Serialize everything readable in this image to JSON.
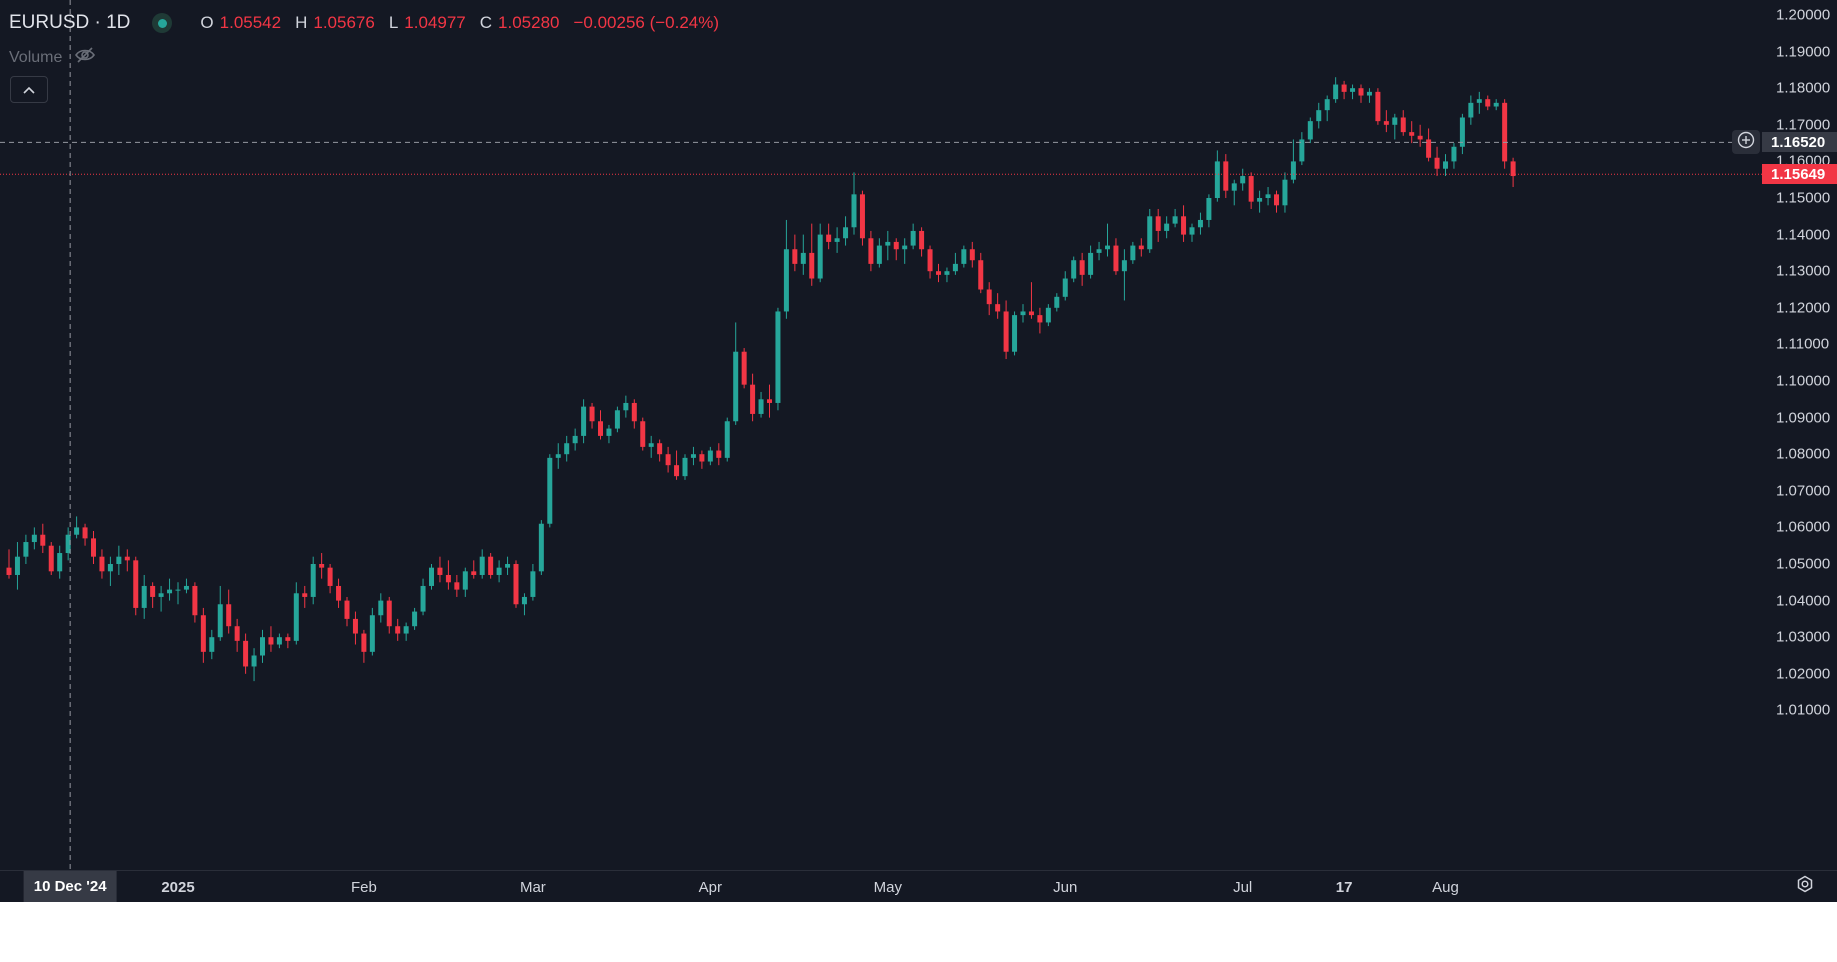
{
  "legend": {
    "symbol": "EURUSD · 1D",
    "open_key": "O",
    "open": "1.05542",
    "high_key": "H",
    "high": "1.05676",
    "low_key": "L",
    "low": "1.04977",
    "close_key": "C",
    "close": "1.05280",
    "change": "−0.00256 (−0.24%)"
  },
  "volume": {
    "label": "Volume",
    "icon": "eye-off-icon"
  },
  "collapse_icon": "chevron-up-icon",
  "settings_icon": "gear-icon",
  "add_alert_icon": "plus-circle-icon",
  "crosshair": {
    "price_label": "1.16520",
    "time_label": "10 Dec '24"
  },
  "last_price": {
    "label": "1.15649"
  },
  "colors": {
    "up": "#26a69a",
    "down": "#f23645",
    "background": "#141823",
    "text": "#d1d4dc"
  },
  "chart_data": {
    "type": "candlestick",
    "ylim": [
      1.0,
      1.2
    ],
    "grid": false,
    "y_ticks": [
      "1.20000",
      "1.19000",
      "1.18000",
      "1.17000",
      "1.16000",
      "1.15000",
      "1.14000",
      "1.13000",
      "1.12000",
      "1.11000",
      "1.10000",
      "1.09000",
      "1.08000",
      "1.07000",
      "1.06000",
      "1.05000",
      "1.04000",
      "1.03000",
      "1.02000",
      "1.01000"
    ],
    "x_ticks": [
      {
        "label": "Dec",
        "bold": false,
        "index": 0
      },
      {
        "label": "2025",
        "bold": true,
        "index": 20
      },
      {
        "label": "Feb",
        "bold": false,
        "index": 42
      },
      {
        "label": "Mar",
        "bold": false,
        "index": 62
      },
      {
        "label": "Apr",
        "bold": false,
        "index": 83
      },
      {
        "label": "May",
        "bold": false,
        "index": 104
      },
      {
        "label": "Jun",
        "bold": false,
        "index": 125
      },
      {
        "label": "Jul",
        "bold": false,
        "index": 146
      },
      {
        "label": "17",
        "bold": true,
        "index": 158
      },
      {
        "label": "Aug",
        "bold": false,
        "index": 170
      }
    ],
    "crosshair_index": 7,
    "crosshair_price": 1.1652,
    "last_price": 1.15649,
    "ohlc": [
      [
        1.049,
        1.054,
        1.046,
        1.047
      ],
      [
        1.047,
        1.056,
        1.043,
        1.052
      ],
      [
        1.052,
        1.058,
        1.05,
        1.056
      ],
      [
        1.056,
        1.06,
        1.054,
        1.058
      ],
      [
        1.058,
        1.061,
        1.053,
        1.055
      ],
      [
        1.055,
        1.056,
        1.047,
        1.048
      ],
      [
        1.048,
        1.055,
        1.046,
        1.053
      ],
      [
        1.053,
        1.06,
        1.051,
        1.058
      ],
      [
        1.058,
        1.063,
        1.057,
        1.06
      ],
      [
        1.06,
        1.061,
        1.055,
        1.057
      ],
      [
        1.057,
        1.059,
        1.05,
        1.052
      ],
      [
        1.052,
        1.054,
        1.046,
        1.048
      ],
      [
        1.048,
        1.052,
        1.044,
        1.05
      ],
      [
        1.05,
        1.055,
        1.047,
        1.052
      ],
      [
        1.052,
        1.054,
        1.048,
        1.051
      ],
      [
        1.051,
        1.052,
        1.036,
        1.038
      ],
      [
        1.038,
        1.047,
        1.035,
        1.044
      ],
      [
        1.044,
        1.045,
        1.038,
        1.041
      ],
      [
        1.041,
        1.044,
        1.037,
        1.042
      ],
      [
        1.042,
        1.046,
        1.04,
        1.043
      ],
      [
        1.043,
        1.045,
        1.039,
        1.043
      ],
      [
        1.043,
        1.046,
        1.042,
        1.044
      ],
      [
        1.044,
        1.045,
        1.034,
        1.036
      ],
      [
        1.036,
        1.038,
        1.023,
        1.026
      ],
      [
        1.026,
        1.032,
        1.024,
        1.03
      ],
      [
        1.03,
        1.044,
        1.029,
        1.039
      ],
      [
        1.039,
        1.043,
        1.031,
        1.033
      ],
      [
        1.033,
        1.035,
        1.026,
        1.029
      ],
      [
        1.029,
        1.031,
        1.02,
        1.022
      ],
      [
        1.022,
        1.027,
        1.018,
        1.025
      ],
      [
        1.025,
        1.032,
        1.023,
        1.03
      ],
      [
        1.03,
        1.033,
        1.026,
        1.028
      ],
      [
        1.028,
        1.031,
        1.027,
        1.03
      ],
      [
        1.03,
        1.031,
        1.027,
        1.029
      ],
      [
        1.029,
        1.045,
        1.028,
        1.042
      ],
      [
        1.042,
        1.044,
        1.038,
        1.041
      ],
      [
        1.041,
        1.052,
        1.039,
        1.05
      ],
      [
        1.05,
        1.053,
        1.046,
        1.049
      ],
      [
        1.049,
        1.05,
        1.042,
        1.044
      ],
      [
        1.044,
        1.046,
        1.038,
        1.04
      ],
      [
        1.04,
        1.041,
        1.033,
        1.035
      ],
      [
        1.035,
        1.037,
        1.028,
        1.031
      ],
      [
        1.031,
        1.032,
        1.023,
        1.026
      ],
      [
        1.026,
        1.038,
        1.025,
        1.036
      ],
      [
        1.036,
        1.042,
        1.034,
        1.04
      ],
      [
        1.04,
        1.041,
        1.031,
        1.033
      ],
      [
        1.033,
        1.035,
        1.029,
        1.031
      ],
      [
        1.031,
        1.034,
        1.029,
        1.033
      ],
      [
        1.033,
        1.038,
        1.032,
        1.037
      ],
      [
        1.037,
        1.046,
        1.036,
        1.044
      ],
      [
        1.044,
        1.05,
        1.043,
        1.049
      ],
      [
        1.049,
        1.052,
        1.045,
        1.047
      ],
      [
        1.047,
        1.051,
        1.043,
        1.045
      ],
      [
        1.045,
        1.047,
        1.041,
        1.043
      ],
      [
        1.043,
        1.049,
        1.041,
        1.048
      ],
      [
        1.048,
        1.051,
        1.046,
        1.047
      ],
      [
        1.047,
        1.054,
        1.046,
        1.052
      ],
      [
        1.052,
        1.053,
        1.046,
        1.047
      ],
      [
        1.047,
        1.051,
        1.045,
        1.049
      ],
      [
        1.049,
        1.052,
        1.047,
        1.05
      ],
      [
        1.05,
        1.051,
        1.038,
        1.039
      ],
      [
        1.039,
        1.042,
        1.036,
        1.041
      ],
      [
        1.041,
        1.05,
        1.04,
        1.048
      ],
      [
        1.048,
        1.062,
        1.047,
        1.061
      ],
      [
        1.061,
        1.08,
        1.06,
        1.079
      ],
      [
        1.079,
        1.083,
        1.076,
        1.08
      ],
      [
        1.08,
        1.085,
        1.078,
        1.083
      ],
      [
        1.083,
        1.087,
        1.081,
        1.085
      ],
      [
        1.085,
        1.095,
        1.083,
        1.093
      ],
      [
        1.093,
        1.094,
        1.087,
        1.089
      ],
      [
        1.089,
        1.092,
        1.084,
        1.085
      ],
      [
        1.085,
        1.088,
        1.083,
        1.087
      ],
      [
        1.087,
        1.093,
        1.086,
        1.092
      ],
      [
        1.092,
        1.096,
        1.09,
        1.094
      ],
      [
        1.094,
        1.095,
        1.087,
        1.089
      ],
      [
        1.089,
        1.09,
        1.081,
        1.082
      ],
      [
        1.082,
        1.085,
        1.079,
        1.083
      ],
      [
        1.083,
        1.084,
        1.078,
        1.08
      ],
      [
        1.08,
        1.082,
        1.075,
        1.077
      ],
      [
        1.077,
        1.081,
        1.073,
        1.074
      ],
      [
        1.074,
        1.08,
        1.073,
        1.079
      ],
      [
        1.079,
        1.082,
        1.077,
        1.08
      ],
      [
        1.08,
        1.081,
        1.076,
        1.078
      ],
      [
        1.078,
        1.082,
        1.077,
        1.081
      ],
      [
        1.081,
        1.083,
        1.077,
        1.079
      ],
      [
        1.079,
        1.09,
        1.078,
        1.089
      ],
      [
        1.089,
        1.116,
        1.088,
        1.108
      ],
      [
        1.108,
        1.109,
        1.098,
        1.099
      ],
      [
        1.099,
        1.102,
        1.089,
        1.091
      ],
      [
        1.091,
        1.097,
        1.09,
        1.095
      ],
      [
        1.095,
        1.099,
        1.09,
        1.094
      ],
      [
        1.094,
        1.12,
        1.092,
        1.119
      ],
      [
        1.119,
        1.144,
        1.117,
        1.136
      ],
      [
        1.136,
        1.14,
        1.13,
        1.132
      ],
      [
        1.132,
        1.14,
        1.129,
        1.135
      ],
      [
        1.135,
        1.143,
        1.126,
        1.128
      ],
      [
        1.128,
        1.143,
        1.127,
        1.14
      ],
      [
        1.14,
        1.143,
        1.136,
        1.138
      ],
      [
        1.138,
        1.142,
        1.135,
        1.139
      ],
      [
        1.139,
        1.145,
        1.137,
        1.142
      ],
      [
        1.142,
        1.157,
        1.14,
        1.151
      ],
      [
        1.151,
        1.152,
        1.137,
        1.139
      ],
      [
        1.139,
        1.141,
        1.13,
        1.132
      ],
      [
        1.132,
        1.139,
        1.131,
        1.137
      ],
      [
        1.137,
        1.141,
        1.133,
        1.138
      ],
      [
        1.138,
        1.139,
        1.133,
        1.136
      ],
      [
        1.136,
        1.139,
        1.132,
        1.137
      ],
      [
        1.137,
        1.143,
        1.136,
        1.141
      ],
      [
        1.141,
        1.142,
        1.134,
        1.136
      ],
      [
        1.136,
        1.137,
        1.128,
        1.13
      ],
      [
        1.13,
        1.132,
        1.127,
        1.129
      ],
      [
        1.129,
        1.131,
        1.127,
        1.13
      ],
      [
        1.13,
        1.135,
        1.129,
        1.132
      ],
      [
        1.132,
        1.137,
        1.131,
        1.136
      ],
      [
        1.136,
        1.138,
        1.131,
        1.133
      ],
      [
        1.133,
        1.135,
        1.124,
        1.125
      ],
      [
        1.125,
        1.127,
        1.118,
        1.121
      ],
      [
        1.121,
        1.124,
        1.117,
        1.119
      ],
      [
        1.119,
        1.122,
        1.106,
        1.108
      ],
      [
        1.108,
        1.119,
        1.107,
        1.118
      ],
      [
        1.118,
        1.121,
        1.116,
        1.119
      ],
      [
        1.119,
        1.127,
        1.117,
        1.118
      ],
      [
        1.118,
        1.12,
        1.113,
        1.116
      ],
      [
        1.116,
        1.121,
        1.115,
        1.12
      ],
      [
        1.12,
        1.124,
        1.119,
        1.123
      ],
      [
        1.123,
        1.13,
        1.122,
        1.128
      ],
      [
        1.128,
        1.134,
        1.127,
        1.133
      ],
      [
        1.133,
        1.135,
        1.126,
        1.129
      ],
      [
        1.129,
        1.137,
        1.128,
        1.135
      ],
      [
        1.135,
        1.138,
        1.133,
        1.136
      ],
      [
        1.136,
        1.143,
        1.134,
        1.137
      ],
      [
        1.137,
        1.139,
        1.129,
        1.13
      ],
      [
        1.13,
        1.136,
        1.122,
        1.133
      ],
      [
        1.133,
        1.138,
        1.132,
        1.137
      ],
      [
        1.137,
        1.139,
        1.134,
        1.136
      ],
      [
        1.136,
        1.147,
        1.135,
        1.145
      ],
      [
        1.145,
        1.147,
        1.138,
        1.141
      ],
      [
        1.141,
        1.145,
        1.139,
        1.143
      ],
      [
        1.143,
        1.147,
        1.142,
        1.145
      ],
      [
        1.145,
        1.148,
        1.138,
        1.14
      ],
      [
        1.14,
        1.143,
        1.138,
        1.142
      ],
      [
        1.142,
        1.146,
        1.14,
        1.144
      ],
      [
        1.144,
        1.151,
        1.142,
        1.15
      ],
      [
        1.15,
        1.163,
        1.149,
        1.16
      ],
      [
        1.16,
        1.162,
        1.15,
        1.152
      ],
      [
        1.152,
        1.155,
        1.148,
        1.154
      ],
      [
        1.154,
        1.158,
        1.152,
        1.156
      ],
      [
        1.156,
        1.157,
        1.147,
        1.149
      ],
      [
        1.149,
        1.152,
        1.146,
        1.15
      ],
      [
        1.15,
        1.153,
        1.148,
        1.151
      ],
      [
        1.151,
        1.152,
        1.146,
        1.148
      ],
      [
        1.148,
        1.157,
        1.146,
        1.155
      ],
      [
        1.155,
        1.166,
        1.154,
        1.16
      ],
      [
        1.16,
        1.168,
        1.159,
        1.166
      ],
      [
        1.166,
        1.172,
        1.165,
        1.171
      ],
      [
        1.171,
        1.176,
        1.169,
        1.174
      ],
      [
        1.174,
        1.178,
        1.171,
        1.177
      ],
      [
        1.177,
        1.183,
        1.176,
        1.181
      ],
      [
        1.181,
        1.182,
        1.177,
        1.179
      ],
      [
        1.179,
        1.181,
        1.177,
        1.18
      ],
      [
        1.18,
        1.181,
        1.176,
        1.178
      ],
      [
        1.178,
        1.18,
        1.176,
        1.179
      ],
      [
        1.179,
        1.18,
        1.17,
        1.171
      ],
      [
        1.171,
        1.174,
        1.168,
        1.17
      ],
      [
        1.17,
        1.173,
        1.166,
        1.172
      ],
      [
        1.172,
        1.174,
        1.167,
        1.168
      ],
      [
        1.168,
        1.171,
        1.165,
        1.167
      ],
      [
        1.167,
        1.17,
        1.164,
        1.166
      ],
      [
        1.166,
        1.169,
        1.16,
        1.161
      ],
      [
        1.161,
        1.164,
        1.156,
        1.158
      ],
      [
        1.158,
        1.162,
        1.156,
        1.16
      ],
      [
        1.16,
        1.165,
        1.158,
        1.164
      ],
      [
        1.164,
        1.173,
        1.162,
        1.172
      ],
      [
        1.172,
        1.178,
        1.17,
        1.176
      ],
      [
        1.176,
        1.179,
        1.173,
        1.177
      ],
      [
        1.177,
        1.178,
        1.174,
        1.175
      ],
      [
        1.175,
        1.177,
        1.174,
        1.176
      ],
      [
        1.176,
        1.177,
        1.158,
        1.16
      ],
      [
        1.16,
        1.161,
        1.153,
        1.156
      ]
    ]
  }
}
